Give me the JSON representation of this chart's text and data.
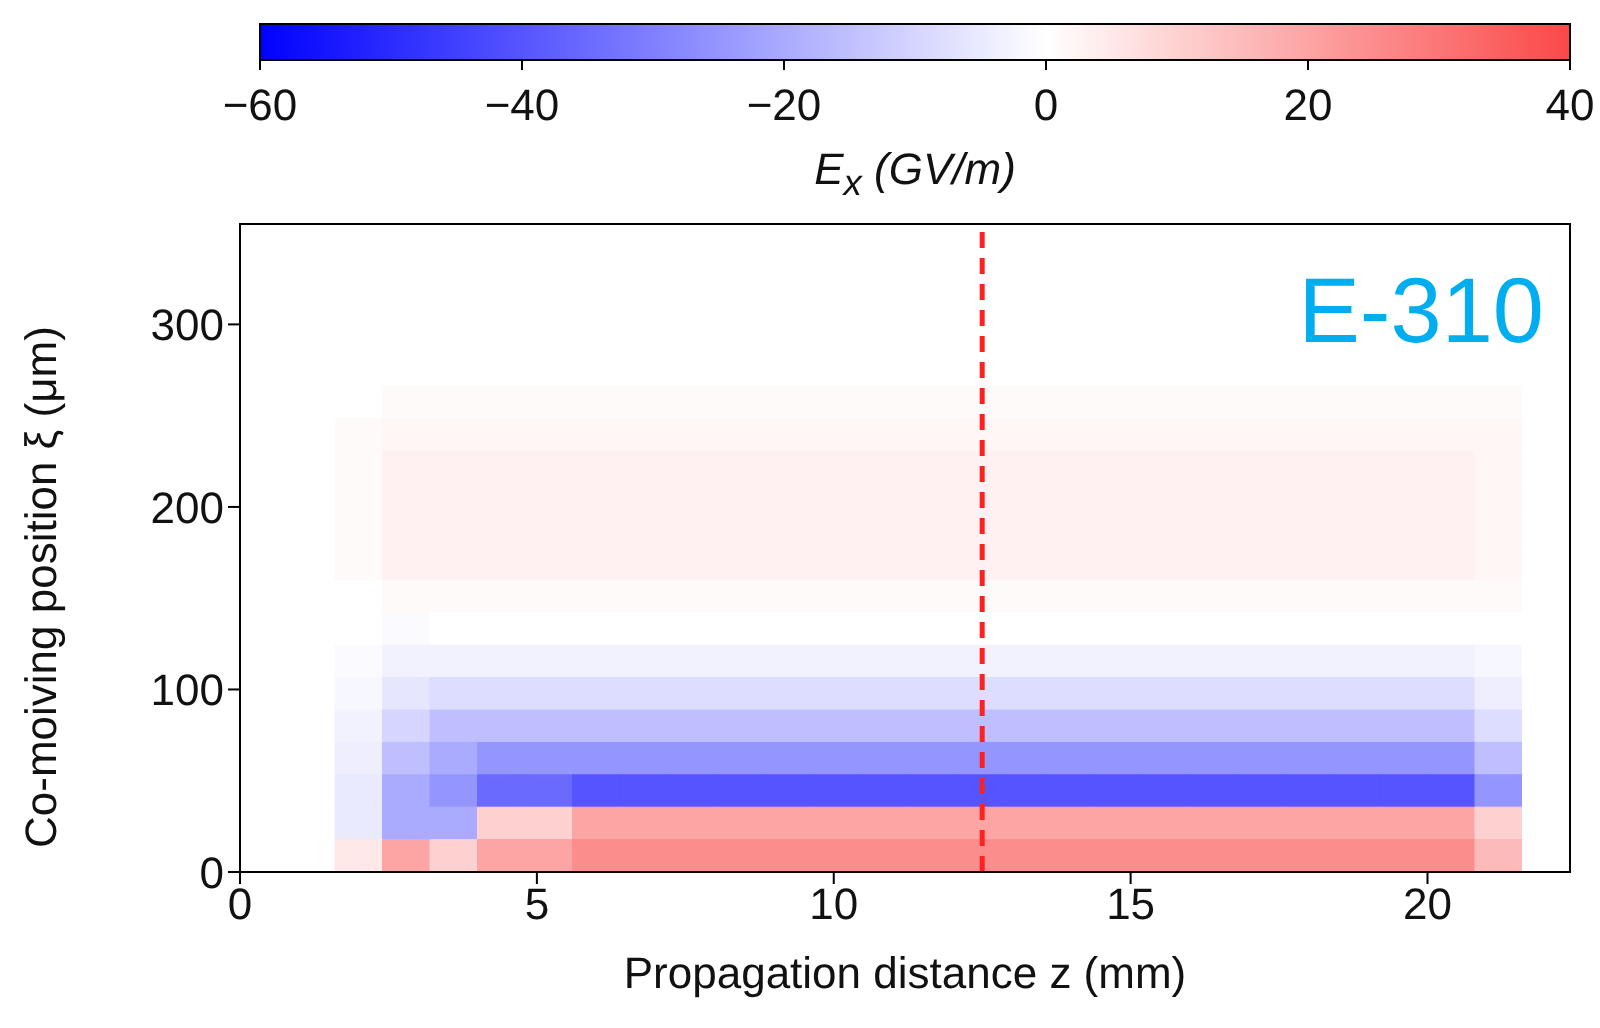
{
  "chart_data": {
    "type": "heatmap",
    "xlabel": "Propagation distance z (mm)",
    "ylabel": "Co-moiving position ξ (μm)",
    "clabel": "E$_{x}$ (GV/m)",
    "annotations": [
      "E-310"
    ],
    "x": [
      0.4,
      1.2,
      2.0,
      2.8,
      3.6,
      4.4,
      5.2,
      6.0,
      6.8,
      7.6,
      8.4,
      9.2,
      10.0,
      10.8,
      11.6,
      12.4,
      13.2,
      14.0,
      14.8,
      15.6,
      16.4,
      17.2,
      18.0,
      18.8,
      19.6,
      20.4,
      21.2,
      22.0
    ],
    "xlim": [
      0,
      22.4
    ],
    "ylim": [
      0,
      355
    ],
    "xticks": [
      0,
      5,
      10,
      15,
      20
    ],
    "yticks": [
      0,
      100,
      200,
      300
    ],
    "clim": [
      -60,
      40
    ],
    "cticks": [
      -60,
      -40,
      -20,
      0,
      20,
      40
    ],
    "ref_lines": [
      {
        "axis": "x",
        "value": 12.5,
        "color": "#ff2020",
        "line_style": "dashed"
      }
    ],
    "cells": [
      [
        0,
        0,
        0,
        0,
        0,
        0,
        0,
        0,
        0,
        0,
        0,
        0,
        0,
        0,
        0,
        0,
        0,
        0,
        0,
        0,
        0,
        0,
        0,
        0,
        0,
        0,
        0,
        0
      ],
      [
        0,
        0,
        0,
        0,
        0,
        0,
        0,
        0,
        0,
        0,
        0,
        0,
        0,
        0,
        0,
        0,
        0,
        0,
        0,
        0,
        0,
        0,
        0,
        0,
        0,
        0,
        0,
        0
      ],
      [
        0,
        0,
        0,
        0,
        0,
        0,
        0,
        0,
        0,
        0,
        0,
        0,
        0,
        0,
        0,
        0,
        0,
        0,
        0,
        0,
        0,
        0,
        0,
        0,
        0,
        0,
        0,
        0
      ],
      [
        0,
        0,
        0,
        0,
        0,
        0,
        0,
        0,
        0,
        0,
        0,
        0,
        0,
        0,
        0,
        0,
        0,
        0,
        0,
        0,
        0,
        0,
        0,
        0,
        0,
        0,
        0,
        0
      ],
      [
        0,
        0,
        0,
        0,
        0,
        0,
        0,
        0,
        0,
        0,
        0,
        0,
        0,
        0,
        0,
        0,
        0,
        0,
        0,
        0,
        0,
        0,
        0,
        0,
        0,
        0,
        0,
        0
      ],
      [
        0,
        0,
        0,
        1,
        1,
        1,
        1,
        1,
        1,
        1,
        1,
        1,
        1,
        1,
        1,
        1,
        1,
        1,
        1,
        1,
        1,
        1,
        1,
        1,
        1,
        1,
        1,
        0
      ],
      [
        0,
        0,
        1,
        2,
        2,
        2,
        2,
        2,
        2,
        2,
        2,
        2,
        2,
        2,
        2,
        2,
        2,
        2,
        2,
        2,
        2,
        2,
        2,
        2,
        2,
        2,
        2,
        0
      ],
      [
        0,
        0,
        1,
        3,
        3,
        3,
        3,
        3,
        3,
        3,
        3,
        3,
        3,
        3,
        3,
        3,
        3,
        3,
        3,
        3,
        3,
        3,
        3,
        3,
        3,
        3,
        2,
        0
      ],
      [
        0,
        0,
        1,
        3,
        3,
        3,
        3,
        3,
        3,
        3,
        3,
        3,
        3,
        3,
        3,
        3,
        3,
        3,
        3,
        3,
        3,
        3,
        3,
        3,
        3,
        3,
        2,
        0
      ],
      [
        0,
        0,
        1,
        3,
        3,
        3,
        3,
        3,
        3,
        3,
        3,
        3,
        3,
        3,
        3,
        3,
        3,
        3,
        3,
        3,
        3,
        3,
        3,
        3,
        3,
        3,
        2,
        0
      ],
      [
        0,
        0,
        1,
        3,
        3,
        3,
        3,
        3,
        3,
        3,
        3,
        3,
        3,
        3,
        3,
        3,
        3,
        3,
        3,
        3,
        3,
        3,
        3,
        3,
        3,
        3,
        2,
        0
      ],
      [
        0,
        0,
        0,
        1,
        1,
        1,
        1,
        1,
        1,
        1,
        1,
        1,
        1,
        1,
        1,
        1,
        1,
        1,
        1,
        1,
        1,
        1,
        1,
        1,
        1,
        1,
        1,
        0
      ],
      [
        0,
        0,
        0,
        -1,
        0,
        0,
        0,
        0,
        0,
        0,
        0,
        0,
        0,
        0,
        0,
        0,
        0,
        0,
        0,
        0,
        0,
        0,
        0,
        0,
        0,
        0,
        0,
        0
      ],
      [
        0,
        0,
        -1,
        -3,
        -3,
        -3,
        -3,
        -3,
        -3,
        -3,
        -3,
        -3,
        -3,
        -3,
        -3,
        -3,
        -3,
        -3,
        -3,
        -3,
        -3,
        -3,
        -3,
        -3,
        -3,
        -3,
        -2,
        0
      ],
      [
        0,
        0,
        -2,
        -6,
        -8,
        -8,
        -8,
        -8,
        -8,
        -8,
        -8,
        -8,
        -8,
        -8,
        -8,
        -8,
        -8,
        -8,
        -8,
        -8,
        -8,
        -8,
        -8,
        -8,
        -8,
        -8,
        -4,
        0
      ],
      [
        0,
        0,
        -3,
        -10,
        -15,
        -15,
        -15,
        -15,
        -15,
        -15,
        -15,
        -15,
        -15,
        -15,
        -15,
        -15,
        -15,
        -15,
        -15,
        -15,
        -15,
        -15,
        -15,
        -15,
        -15,
        -15,
        -8,
        0
      ],
      [
        0,
        0,
        -4,
        -15,
        -20,
        -25,
        -25,
        -25,
        -25,
        -25,
        -25,
        -25,
        -25,
        -25,
        -25,
        -25,
        -25,
        -25,
        -25,
        -25,
        -25,
        -25,
        -25,
        -25,
        -25,
        -25,
        -15,
        0
      ],
      [
        0,
        0,
        -5,
        -20,
        -25,
        -35,
        -35,
        -40,
        -40,
        -40,
        -40,
        -40,
        -40,
        -40,
        -40,
        -40,
        -40,
        -40,
        -40,
        -40,
        -40,
        -40,
        -40,
        -40,
        -40,
        -40,
        -25,
        0
      ],
      [
        0,
        0,
        -5,
        -20,
        -20,
        10,
        10,
        20,
        20,
        20,
        20,
        20,
        20,
        20,
        20,
        20,
        20,
        20,
        20,
        20,
        20,
        20,
        20,
        20,
        20,
        20,
        10,
        0
      ],
      [
        0,
        0,
        5,
        20,
        10,
        20,
        20,
        25,
        25,
        25,
        25,
        25,
        25,
        25,
        25,
        25,
        25,
        25,
        25,
        25,
        25,
        25,
        25,
        25,
        25,
        25,
        15,
        0
      ]
    ]
  }
}
